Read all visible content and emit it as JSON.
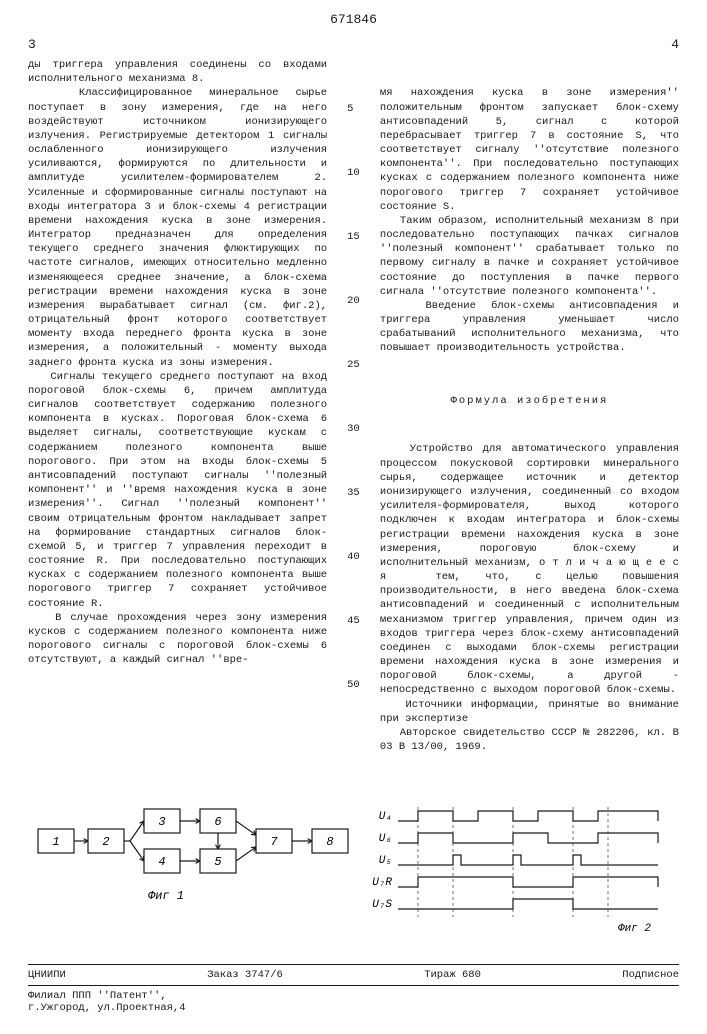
{
  "doc_number": "671846",
  "page_left": "3",
  "page_right": "4",
  "line_numbers": [
    "5",
    "10",
    "15",
    "20",
    "25",
    "30",
    "35",
    "40",
    "45",
    "50"
  ],
  "col_left": "ды триггера управления соединены со входами исполнительного механизма 8.\n   Классифицированное минеральное сырье поступает в зону измерения, где на него воздействуют источником ионизирующего излучения. Регистрируемые детектором 1 сигналы ослабленного ионизирующего излучения усиливаются, формируются по длительности и амплитуде усилителем-формирователем 2. Усиленные и сформированные сигналы поступают на входы интегратора 3 и блок-схемы 4 регистрации времени нахождения куска в зоне измерения. Интегратор предназначен для определения текущего среднего значения флюктирующих по частоте сигналов, имеющих относительно медленно изменяющееся среднее значение, а блок-схема регистрации времени нахождения куска в зоне измерения вырабатывает сигнал (см. фиг.2), отрицательный фронт которого соответствует моменту входа переднего фронта куска в зоне измерения, а положительный - моменту выхода заднего фронта куска из зоны измерения.\n   Сигналы текущего среднего поступают на вход пороговой блок-схемы 6, причем амплитуда сигналов соответствует содержанию полезного компонента в кусках. Пороговая блок-схема 6 выделяет сигналы, соответствующие кускам с содержанием полезного компонента выше порогового. При этом на входы блок-схемы 5 антисовпадений поступают сигналы ''полезный компонент'' и ''время нахождения куска в зоне измерения''. Сигнал ''полезный компонент'' своим отрицательным фронтом накладывает запрет на формирование стандартных сигналов блок-схемой 5, и триггер 7 управления переходит в состояние R. При последовательно поступающих кусках с содержанием полезного компонента выше порогового триггер 7 сохраняет устойчивое состояние R.\n   В случае прохождения через зону измерения кусков с содержанием полезного компонента ниже порогового сигналы с пороговой блок-схемы 6 отсутствуют, а каждый сигнал ''вре-",
  "col_right_top": "мя нахождения куска в зоне измерения'' положительным фронтом запускает блок-схему антисовпадений 5, сигнал с которой перебрасывает триггер 7 в состояние S, что соответствует сигналу ''отсутствие полезного компонента''. При последовательно поступающих кусках с содержанием полезного компонента ниже порогового триггер 7 сохраняет устойчивое состояние S.\n   Таким образом, исполнительный механизм 8 при последовательно поступающих пачках сигналов ''полезный компонент'' срабатывает только по первому сигналу в пачке и сохраняет устойчивое состояние до поступления в пачке первого сигнала ''отсутствие полезного компонента''.\n   Введение блок-схемы антисовпадения и триггера управления уменьшает число срабатываний исполнительного механизма, что повышает производительность устройства.",
  "formula_title": "Формула изобретения",
  "col_right_formula": "   Устройство для автоматического управления процессом покусковой сортировки минерального сырья, содержащее источник и детектор ионизирующего излучения, соединенный со входом усилителя-формирователя, выход которого подключен к входам интегратора и блок-схемы регистрации времени нахождения куска в зоне измерения, пороговую блок-схему и исполнительный механизм, о т л и ч а ю щ е е с я  тем, что, с целью повышения производительности, в него введена блок-схема антисовпадений и соединенный с исполнительным механизмом триггер управления, причем один из входов триггера через блок-схему антисовпадений соединен с выходами блок-схемы регистрации времени нахождения куска в зоне измерения и пороговой блок-схемы, а другой - непосредственно с выходом пороговой блок-схемы.\n   Источники информации, принятые во внимание при экспертизе\n   Авторское свидетельство СССР № 282206, кл. В 03 В 13/00, 1969.",
  "fig1": {
    "label": "Фиг 1",
    "blocks": [
      "1",
      "2",
      "3",
      "4",
      "5",
      "6",
      "7",
      "8"
    ],
    "block_w": 36,
    "block_h": 24,
    "stroke": "#1a1a1a",
    "stroke_width": 1.2,
    "fill": "#ffffff",
    "font_size": 12
  },
  "fig2": {
    "label": "Фиг 2",
    "traces": [
      "U₄",
      "U₆",
      "U₅",
      "U₇R",
      "U₇S"
    ],
    "stroke": "#1a1a1a",
    "stroke_width": 1.2,
    "font_size": 11
  },
  "footer": {
    "org": "ЦНИИПИ",
    "order": "Заказ 3747/6",
    "tirazh": "Тираж 680",
    "podpisnoe": "Подписное",
    "filial": "Филиал ППП ''Патент'',",
    "address": "г.Ужгород, ул.Проектная,4"
  }
}
